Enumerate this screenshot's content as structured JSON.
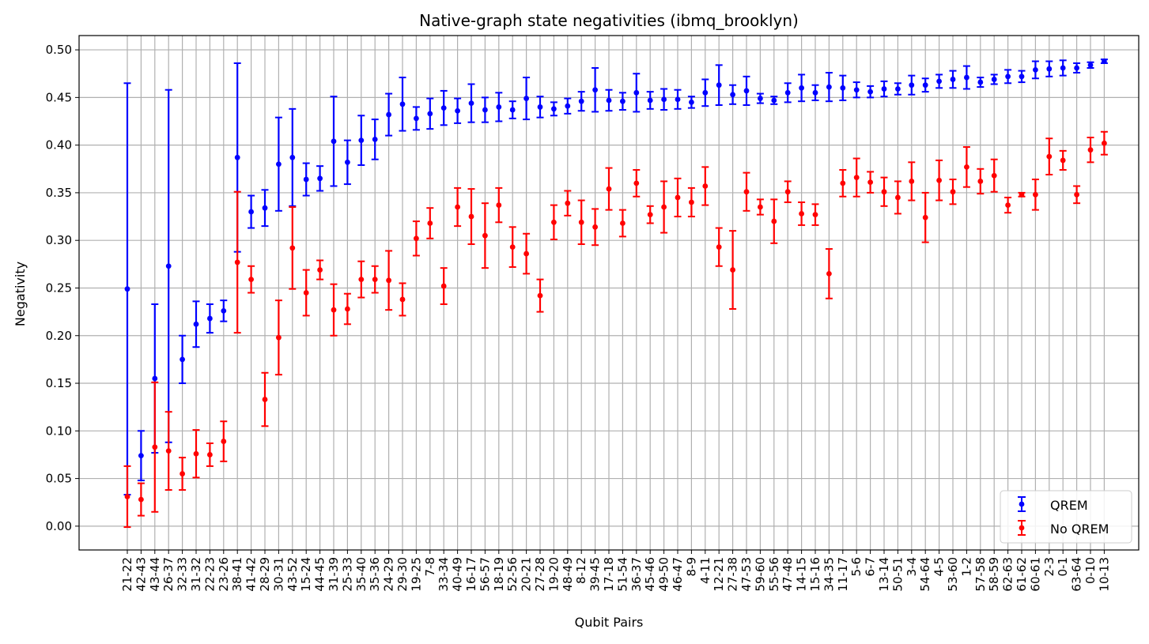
{
  "chart_data": {
    "type": "scatter",
    "title": "Native-graph state negativities (ibmq_brooklyn)",
    "xlabel": "Qubit Pairs",
    "ylabel": "Negativity",
    "ylim": [
      -0.025,
      0.515
    ],
    "yticks": [
      0.0,
      0.05,
      0.1,
      0.15,
      0.2,
      0.25,
      0.3,
      0.35,
      0.4,
      0.45,
      0.5
    ],
    "ytick_labels": [
      "0.00",
      "0.05",
      "0.10",
      "0.15",
      "0.20",
      "0.25",
      "0.30",
      "0.35",
      "0.40",
      "0.45",
      "0.50"
    ],
    "grid": true,
    "legend_position": "lower-right",
    "categories": [
      "21-22",
      "42-43",
      "43-44",
      "26-37",
      "32-33",
      "31-32",
      "22-23",
      "23-26",
      "38-41",
      "41-42",
      "28-29",
      "30-31",
      "43-52",
      "15-24",
      "44-45",
      "31-39",
      "25-33",
      "35-40",
      "35-36",
      "24-29",
      "29-30",
      "19-25",
      "7-8",
      "33-34",
      "40-49",
      "16-17",
      "56-57",
      "18-19",
      "52-56",
      "20-21",
      "27-28",
      "19-20",
      "48-49",
      "8-12",
      "39-45",
      "17-18",
      "51-54",
      "36-37",
      "45-46",
      "49-50",
      "46-47",
      "8-9",
      "4-11",
      "12-21",
      "27-38",
      "47-53",
      "59-60",
      "55-56",
      "47-48",
      "14-15",
      "15-16",
      "34-35",
      "11-17",
      "5-6",
      "6-7",
      "13-14",
      "50-51",
      "3-4",
      "54-64",
      "4-5",
      "53-60",
      "1-2",
      "57-58",
      "58-59",
      "62-63",
      "61-62",
      "60-61",
      "2-3",
      "0-1",
      "63-64",
      "0-10",
      "10-13"
    ],
    "series": [
      {
        "name": "QREM",
        "color": "#0000ff",
        "values": [
          0.249,
          0.074,
          0.155,
          0.273,
          0.175,
          0.212,
          0.218,
          0.226,
          0.387,
          0.33,
          0.334,
          0.38,
          0.387,
          0.364,
          0.365,
          0.404,
          0.382,
          0.405,
          0.406,
          0.432,
          0.443,
          0.428,
          0.433,
          0.439,
          0.436,
          0.444,
          0.437,
          0.44,
          0.437,
          0.449,
          0.44,
          0.438,
          0.441,
          0.446,
          0.458,
          0.447,
          0.446,
          0.455,
          0.447,
          0.448,
          0.448,
          0.445,
          0.455,
          0.463,
          0.453,
          0.457,
          0.449,
          0.447,
          0.455,
          0.46,
          0.455,
          0.461,
          0.46,
          0.458,
          0.456,
          0.459,
          0.459,
          0.463,
          0.463,
          0.467,
          0.469,
          0.471,
          0.466,
          0.469,
          0.472,
          0.472,
          0.479,
          0.48,
          0.481,
          0.481,
          0.484,
          0.488
        ],
        "errors": [
          0.216,
          0.026,
          0.078,
          0.185,
          0.025,
          0.024,
          0.015,
          0.011,
          0.099,
          0.017,
          0.019,
          0.049,
          0.051,
          0.017,
          0.013,
          0.047,
          0.023,
          0.026,
          0.021,
          0.022,
          0.028,
          0.012,
          0.016,
          0.018,
          0.013,
          0.02,
          0.013,
          0.015,
          0.009,
          0.022,
          0.011,
          0.007,
          0.008,
          0.01,
          0.023,
          0.011,
          0.009,
          0.02,
          0.009,
          0.011,
          0.01,
          0.006,
          0.014,
          0.021,
          0.01,
          0.015,
          0.005,
          0.004,
          0.01,
          0.014,
          0.008,
          0.015,
          0.013,
          0.008,
          0.006,
          0.008,
          0.006,
          0.01,
          0.007,
          0.007,
          0.009,
          0.012,
          0.005,
          0.005,
          0.007,
          0.006,
          0.009,
          0.008,
          0.008,
          0.005,
          0.003,
          0.002
        ]
      },
      {
        "name": "No QREM",
        "color": "#ff0000",
        "values": [
          0.031,
          0.028,
          0.083,
          0.079,
          0.055,
          0.076,
          0.075,
          0.089,
          0.277,
          0.259,
          0.133,
          0.198,
          0.292,
          0.245,
          0.269,
          0.227,
          0.228,
          0.259,
          0.259,
          0.258,
          0.238,
          0.302,
          0.318,
          0.252,
          0.335,
          0.325,
          0.305,
          0.337,
          0.293,
          0.286,
          0.242,
          0.319,
          0.339,
          0.319,
          0.314,
          0.354,
          0.318,
          0.36,
          0.327,
          0.335,
          0.345,
          0.34,
          0.357,
          0.293,
          0.269,
          0.351,
          0.335,
          0.32,
          0.351,
          0.328,
          0.327,
          0.265,
          0.36,
          0.366,
          0.361,
          0.351,
          0.345,
          0.362,
          0.324,
          0.363,
          0.351,
          0.377,
          0.362,
          0.368,
          0.337,
          0.348,
          0.348,
          0.388,
          0.384,
          0.348,
          0.395,
          0.402
        ],
        "errors": [
          0.032,
          0.017,
          0.068,
          0.041,
          0.017,
          0.025,
          0.012,
          0.021,
          0.074,
          0.014,
          0.028,
          0.039,
          0.043,
          0.024,
          0.01,
          0.027,
          0.016,
          0.019,
          0.014,
          0.031,
          0.017,
          0.018,
          0.016,
          0.019,
          0.02,
          0.029,
          0.034,
          0.018,
          0.021,
          0.021,
          0.017,
          0.018,
          0.013,
          0.023,
          0.019,
          0.022,
          0.014,
          0.014,
          0.009,
          0.027,
          0.02,
          0.015,
          0.02,
          0.02,
          0.041,
          0.02,
          0.008,
          0.023,
          0.011,
          0.012,
          0.011,
          0.026,
          0.014,
          0.02,
          0.011,
          0.015,
          0.017,
          0.02,
          0.026,
          0.021,
          0.013,
          0.021,
          0.013,
          0.017,
          0.008,
          0.002,
          0.016,
          0.019,
          0.01,
          0.009,
          0.013,
          0.012
        ]
      }
    ]
  }
}
